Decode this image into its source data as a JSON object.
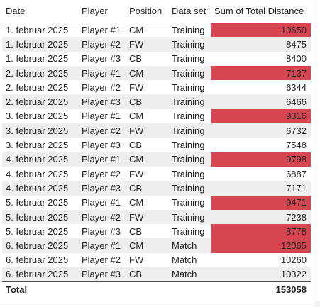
{
  "columns": {
    "date": "Date",
    "player": "Player",
    "position": "Position",
    "data_set": "Data set",
    "total_distance": "Sum of Total Distance"
  },
  "highlight_color": "#d64550",
  "rows": [
    {
      "date": "1. februar 2025",
      "player": "Player #1",
      "position": "CM",
      "data_set": "Training",
      "total_distance": "10650",
      "highlight": true
    },
    {
      "date": "1. februar 2025",
      "player": "Player #2",
      "position": "FW",
      "data_set": "Training",
      "total_distance": "8475",
      "highlight": false
    },
    {
      "date": "1. februar 2025",
      "player": "Player #3",
      "position": "CB",
      "data_set": "Training",
      "total_distance": "8400",
      "highlight": false
    },
    {
      "date": "2. februar 2025",
      "player": "Player #1",
      "position": "CM",
      "data_set": "Training",
      "total_distance": "7137",
      "highlight": true
    },
    {
      "date": "2. februar 2025",
      "player": "Player #2",
      "position": "FW",
      "data_set": "Training",
      "total_distance": "6344",
      "highlight": false
    },
    {
      "date": "2. februar 2025",
      "player": "Player #3",
      "position": "CB",
      "data_set": "Training",
      "total_distance": "6466",
      "highlight": false
    },
    {
      "date": "3. februar 2025",
      "player": "Player #1",
      "position": "CM",
      "data_set": "Training",
      "total_distance": "9316",
      "highlight": true
    },
    {
      "date": "3. februar 2025",
      "player": "Player #2",
      "position": "FW",
      "data_set": "Training",
      "total_distance": "6732",
      "highlight": false
    },
    {
      "date": "3. februar 2025",
      "player": "Player #3",
      "position": "CB",
      "data_set": "Training",
      "total_distance": "7548",
      "highlight": false
    },
    {
      "date": "4. februar 2025",
      "player": "Player #1",
      "position": "CM",
      "data_set": "Training",
      "total_distance": "9798",
      "highlight": true
    },
    {
      "date": "4. februar 2025",
      "player": "Player #2",
      "position": "FW",
      "data_set": "Training",
      "total_distance": "6887",
      "highlight": false
    },
    {
      "date": "4. februar 2025",
      "player": "Player #3",
      "position": "CB",
      "data_set": "Training",
      "total_distance": "7171",
      "highlight": false
    },
    {
      "date": "5. februar 2025",
      "player": "Player #1",
      "position": "CM",
      "data_set": "Training",
      "total_distance": "9471",
      "highlight": true
    },
    {
      "date": "5. februar 2025",
      "player": "Player #2",
      "position": "FW",
      "data_set": "Training",
      "total_distance": "7238",
      "highlight": false
    },
    {
      "date": "5. februar 2025",
      "player": "Player #3",
      "position": "CB",
      "data_set": "Training",
      "total_distance": "8778",
      "highlight": true
    },
    {
      "date": "6. februar 2025",
      "player": "Player #1",
      "position": "CM",
      "data_set": "Match",
      "total_distance": "12065",
      "highlight": true
    },
    {
      "date": "6. februar 2025",
      "player": "Player #2",
      "position": "FW",
      "data_set": "Match",
      "total_distance": "10260",
      "highlight": false
    },
    {
      "date": "6. februar 2025",
      "player": "Player #3",
      "position": "CB",
      "data_set": "Match",
      "total_distance": "10322",
      "highlight": false
    }
  ],
  "total": {
    "label": "Total",
    "total_distance": "153058"
  }
}
